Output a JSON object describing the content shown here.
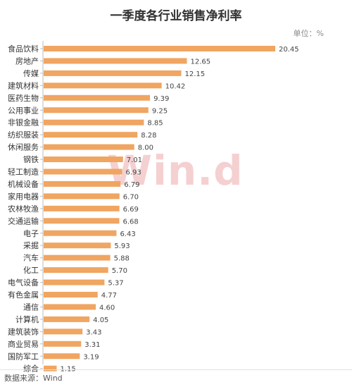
{
  "chart_data": {
    "type": "bar",
    "orientation": "horizontal",
    "title": "一季度各行业销售净利率",
    "unit_label": "单位：%",
    "categories": [
      "食品饮料",
      "房地产",
      "传媒",
      "建筑材料",
      "医药生物",
      "公用事业",
      "非银金融",
      "纺织服装",
      "休闲服务",
      "钢铁",
      "轻工制造",
      "机械设备",
      "家用电器",
      "农林牧渔",
      "交通运输",
      "电子",
      "采掘",
      "汽车",
      "化工",
      "电气设备",
      "有色金属",
      "通信",
      "计算机",
      "建筑装饰",
      "商业贸易",
      "国防军工",
      "综合"
    ],
    "values": [
      20.45,
      12.65,
      12.15,
      10.42,
      9.39,
      9.25,
      8.85,
      8.28,
      8.0,
      7.01,
      6.93,
      6.79,
      6.7,
      6.69,
      6.68,
      6.43,
      5.93,
      5.88,
      5.7,
      5.37,
      4.77,
      4.6,
      4.05,
      3.43,
      3.31,
      3.19,
      1.15
    ],
    "value_labels": [
      "20.45",
      "12.65",
      "12.15",
      "10.42",
      "9.39",
      "9.25",
      "8.85",
      "8.28",
      "8.00",
      "7.01",
      "6.93",
      "6.79",
      "6.70",
      "6.69",
      "6.68",
      "6.43",
      "5.93",
      "5.88",
      "5.70",
      "5.37",
      "4.77",
      "4.60",
      "4.05",
      "3.43",
      "3.31",
      "3.19",
      "1.15"
    ],
    "xlim": [
      0,
      20.45
    ],
    "bar_color": "#f0a561",
    "grid": false,
    "legend": "none"
  },
  "source": "数据来源：Wind",
  "watermark": "Win.d"
}
